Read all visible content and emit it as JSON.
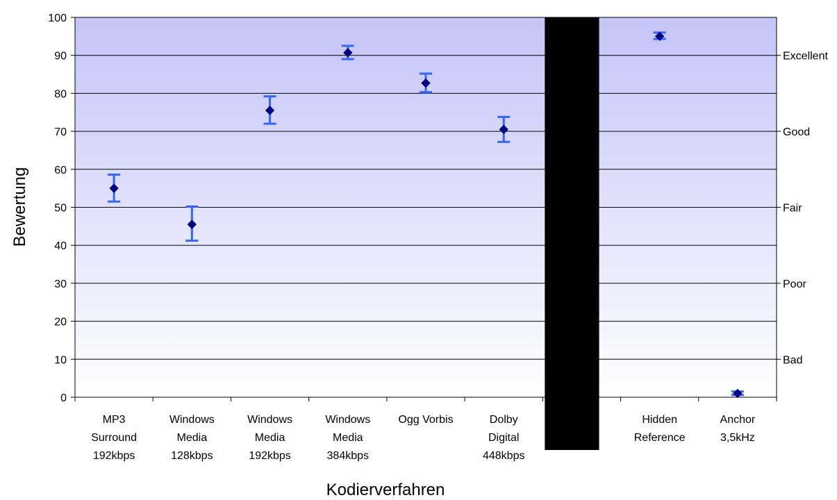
{
  "chart_data": {
    "type": "scatter",
    "title": "",
    "xlabel": "Kodierverfahren",
    "ylabel": "Bewertung",
    "ylim": [
      0,
      100
    ],
    "yticks": [
      0,
      10,
      20,
      30,
      40,
      50,
      60,
      70,
      80,
      90,
      100
    ],
    "grid": true,
    "legend": "none",
    "error_bars": true,
    "categories": [
      [
        "MP3",
        "Surround",
        "192kbps"
      ],
      [
        "Windows",
        "Media",
        "128kbps"
      ],
      [
        "Windows",
        "Media",
        "192kbps"
      ],
      [
        "Windows",
        "Media",
        "384kbps"
      ],
      [
        "Ogg Vorbis"
      ],
      [
        "Dolby",
        "Digital",
        "448kbps"
      ],
      [],
      [
        "Hidden",
        "Reference"
      ],
      [
        "Anchor",
        "3,5kHz"
      ]
    ],
    "series": [
      {
        "values": [
          55,
          45.5,
          75.5,
          90.7,
          82.7,
          70.5,
          null,
          95,
          1
        ],
        "error_low": [
          51.5,
          41.2,
          72,
          89,
          80.3,
          67.2,
          null,
          94.3,
          0.6
        ],
        "error_high": [
          58.6,
          50.2,
          79.2,
          92.5,
          85.2,
          73.8,
          null,
          96,
          1.5
        ],
        "marker": "diamond",
        "marker_color": "#000080",
        "error_color": "#3366ff"
      }
    ],
    "right_axis_labels": [
      {
        "label": "Excellent",
        "value": 90
      },
      {
        "label": "Good",
        "value": 70
      },
      {
        "label": "Fair",
        "value": 50
      },
      {
        "label": "Poor",
        "value": 30
      },
      {
        "label": "Bad",
        "value": 10
      }
    ],
    "separator_column": 6,
    "colors": {
      "background_top": "#c4c4f8",
      "background_bottom": "#ffffff",
      "gridline": "#000000",
      "separator": "#000000"
    }
  }
}
